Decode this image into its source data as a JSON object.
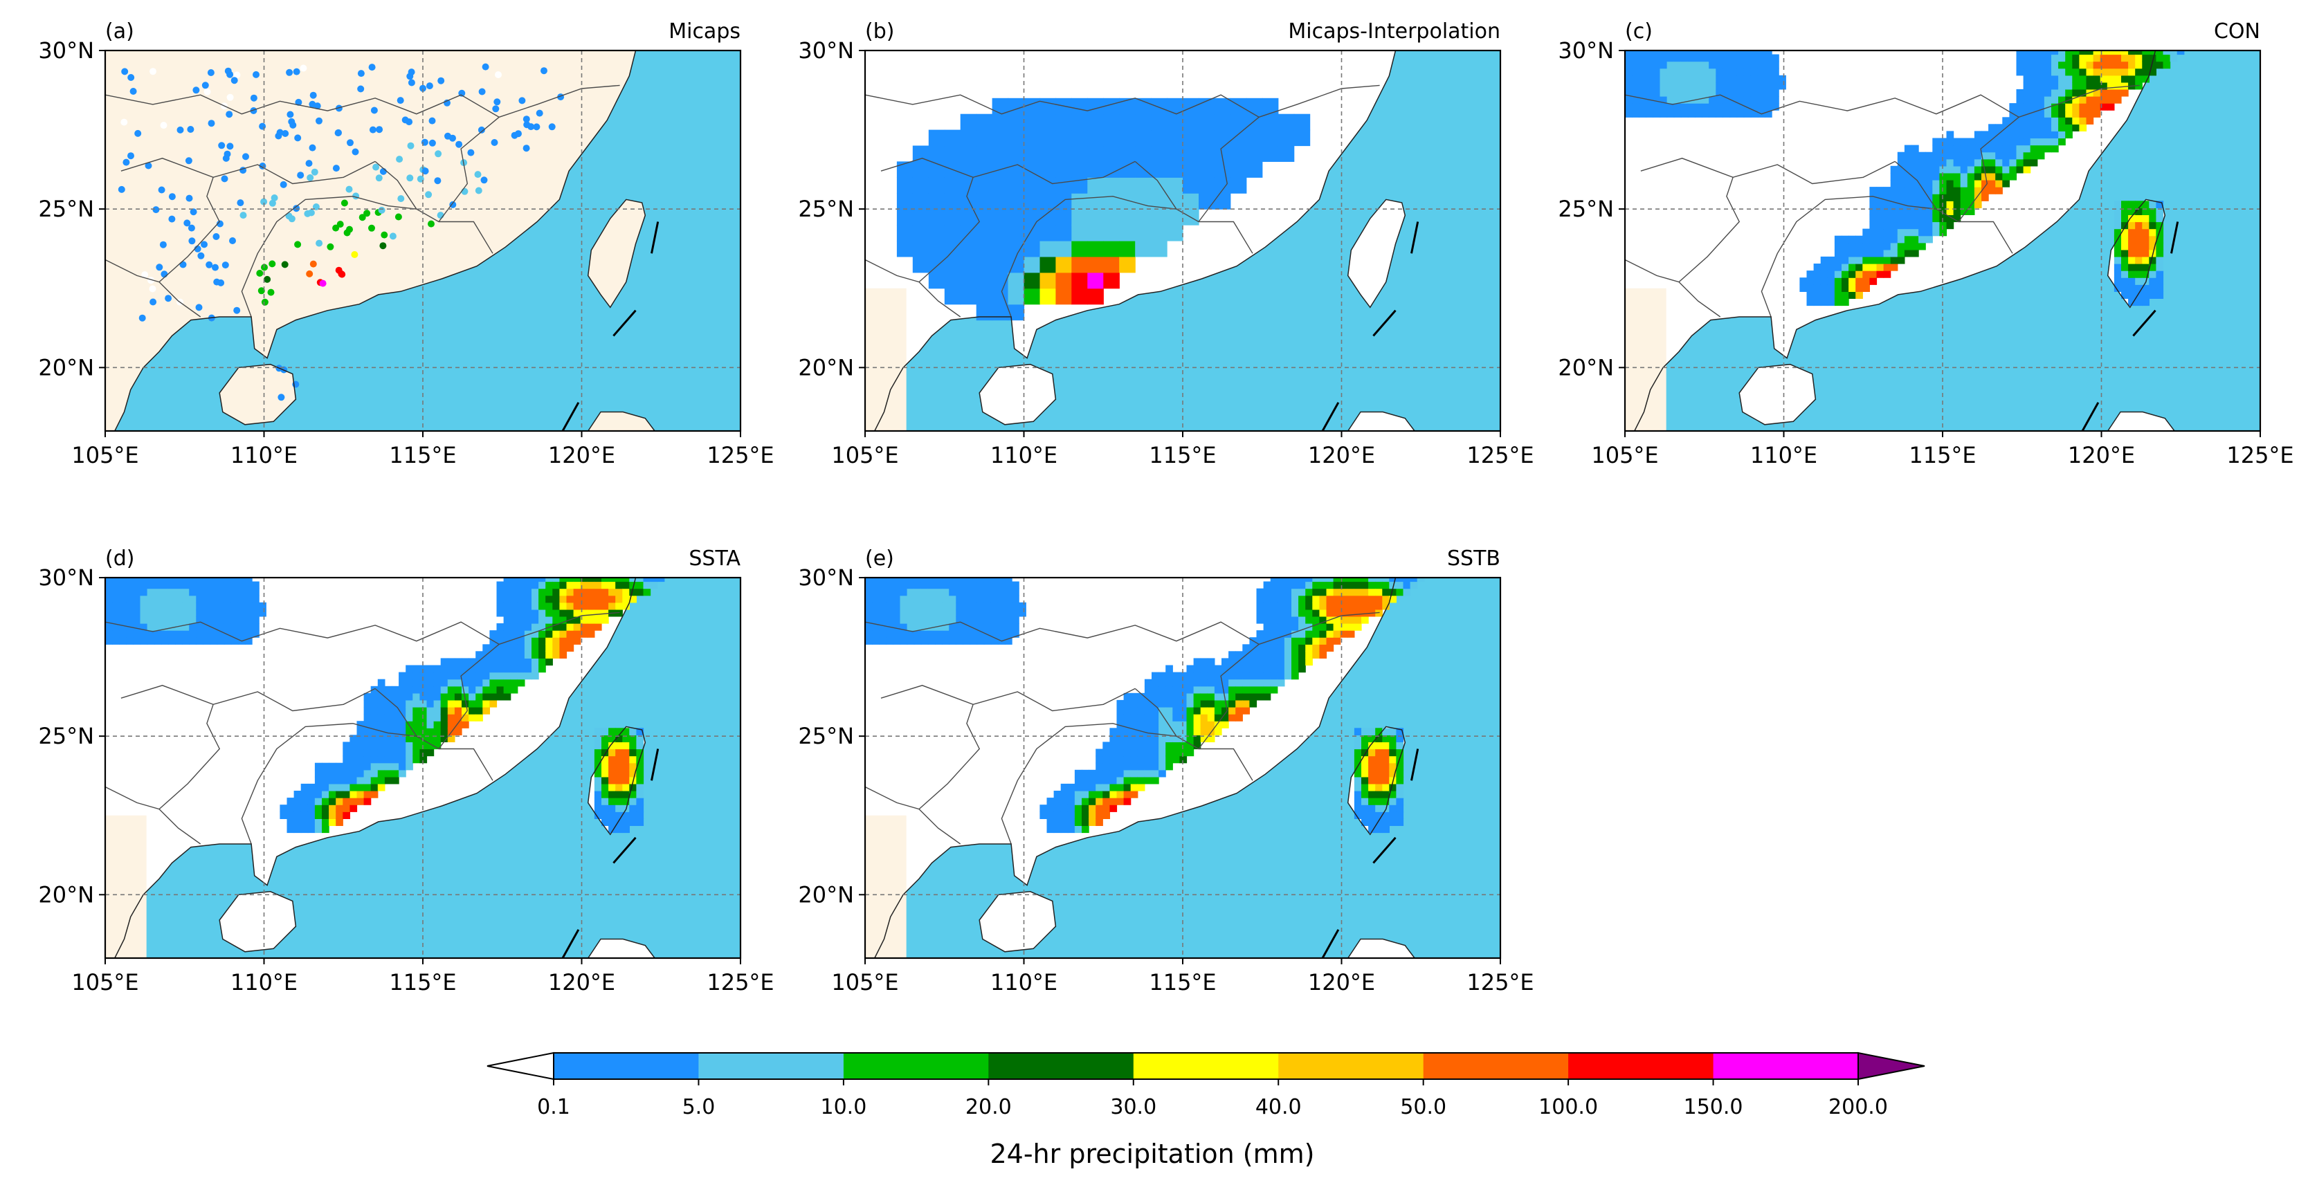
{
  "figure": {
    "panels": [
      {
        "id": "a",
        "tag": "(a)",
        "title": "Micaps",
        "kind": "stations"
      },
      {
        "id": "b",
        "tag": "(b)",
        "title": "Micaps-Interpolation",
        "kind": "interp"
      },
      {
        "id": "c",
        "tag": "(c)",
        "title": "CON",
        "kind": "model"
      },
      {
        "id": "d",
        "tag": "(d)",
        "title": "SSTA",
        "kind": "model"
      },
      {
        "id": "e",
        "tag": "(e)",
        "title": "SSTB",
        "kind": "model"
      }
    ],
    "axes": {
      "lon_range": [
        105,
        125
      ],
      "lat_range": [
        18,
        30
      ],
      "lon_ticks": [
        "105°E",
        "110°E",
        "115°E",
        "120°E",
        "125°E"
      ],
      "lon_tick_values": [
        105,
        110,
        115,
        120,
        125
      ],
      "lat_ticks": [
        "20°N",
        "25°N",
        "30°N"
      ],
      "lat_tick_values": [
        20,
        25,
        30
      ],
      "gridlines": "dashed"
    },
    "colorbar": {
      "label": "24-hr precipitation (mm)",
      "levels": [
        "0.1",
        "5.0",
        "10.0",
        "20.0",
        "30.0",
        "40.0",
        "50.0",
        "100.0",
        "150.0",
        "200.0"
      ],
      "colors": [
        "#1e90ff",
        "#5ac8eb",
        "#00c000",
        "#006e00",
        "#ffff00",
        "#ffc800",
        "#ff6400",
        "#ff0000",
        "#ff00ff",
        "#800080"
      ],
      "under_color": "#ffffff",
      "over_color": "#800080",
      "extend": "both"
    },
    "map_colors": {
      "ocean": "#5bcceb",
      "land": "#fdf3e3",
      "border": "#4a4a4a"
    }
  }
}
